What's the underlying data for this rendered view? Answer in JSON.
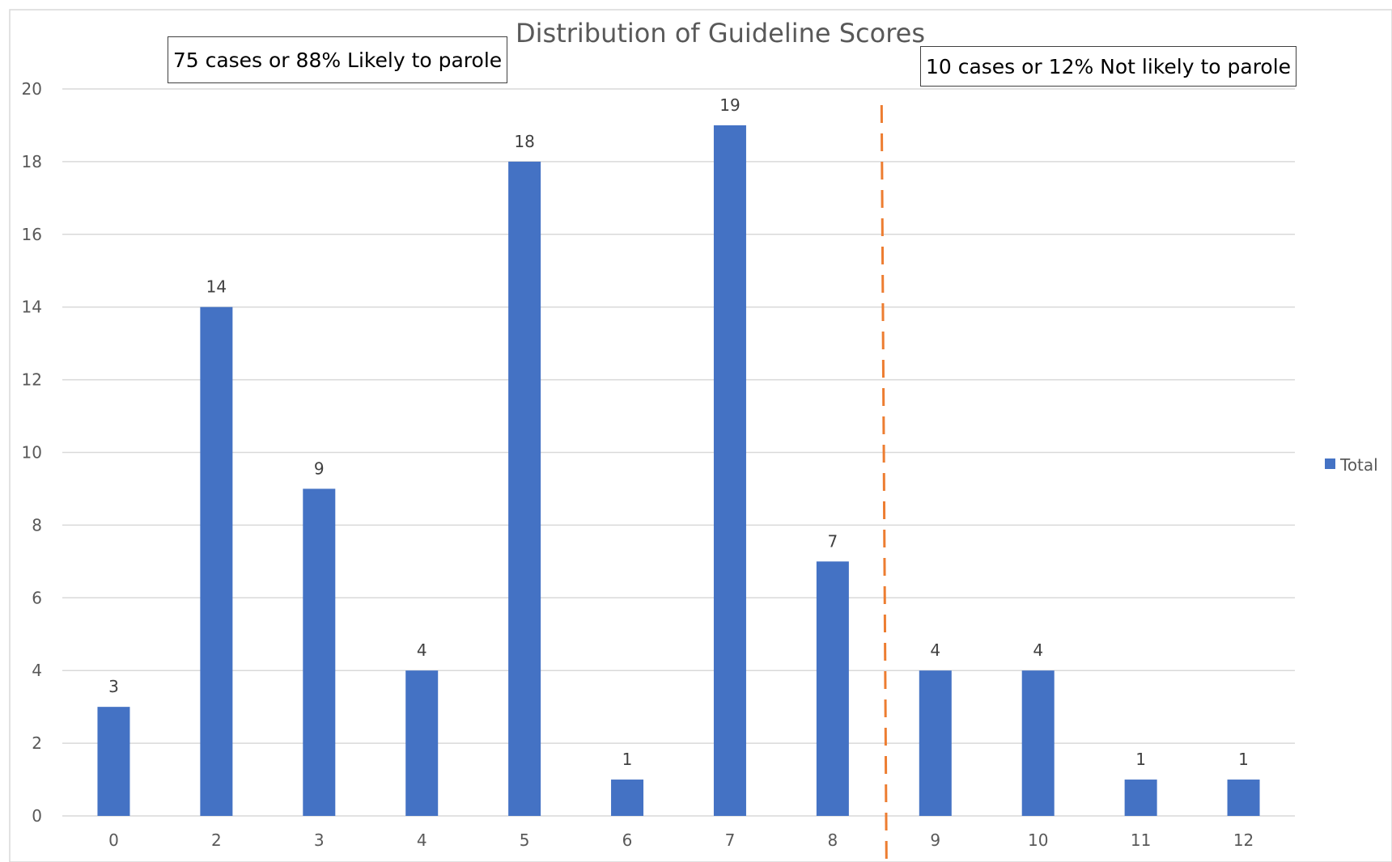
{
  "chart_data": {
    "type": "bar",
    "title": "Distribution of Guideline Scores",
    "categories": [
      "0",
      "2",
      "3",
      "4",
      "5",
      "6",
      "7",
      "8",
      "9",
      "10",
      "11",
      "12"
    ],
    "series": [
      {
        "name": "Total",
        "values": [
          3,
          14,
          9,
          4,
          18,
          1,
          19,
          7,
          4,
          4,
          1,
          1
        ],
        "color": "#4472C4"
      }
    ],
    "ylim": [
      0,
      20
    ],
    "yticks": [
      0,
      2,
      4,
      6,
      8,
      10,
      12,
      14,
      16,
      18,
      20
    ],
    "grid": true,
    "legend": "right",
    "data_labels": true,
    "threshold_line": {
      "between": [
        "8",
        "9"
      ],
      "color": "#ED7D31",
      "style": "dashed"
    },
    "annotations": [
      "75 cases or 88% Likely to parole",
      "10 cases or 12% Not likely to parole"
    ]
  }
}
